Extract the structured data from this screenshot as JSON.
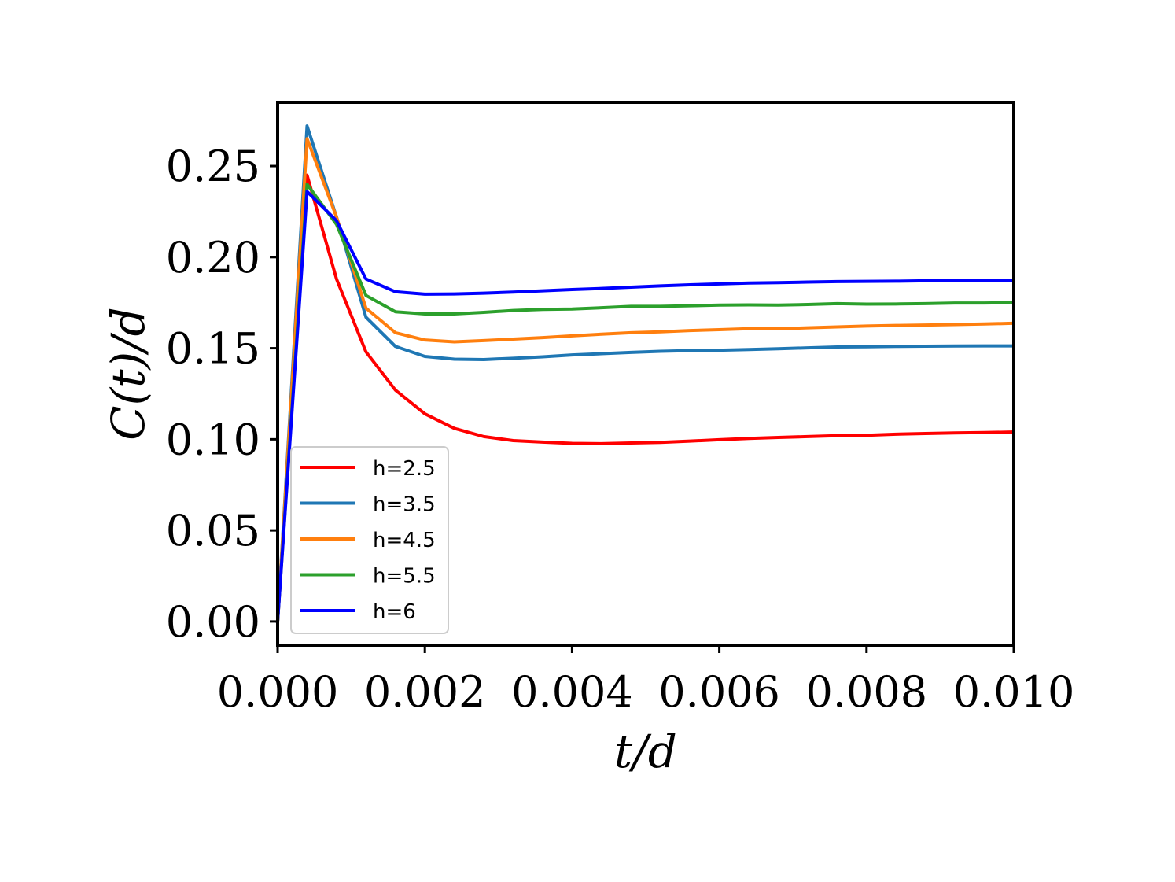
{
  "chart_data": {
    "type": "line",
    "xlabel": "t/d",
    "ylabel": "C(t)/d",
    "xlim": [
      0.0,
      0.01
    ],
    "ylim": [
      -0.013,
      0.285
    ],
    "xticks": [
      0.0,
      0.002,
      0.004,
      0.006,
      0.008,
      0.01
    ],
    "xtick_labels": [
      "0.000",
      "0.002",
      "0.004",
      "0.006",
      "0.008",
      "0.010"
    ],
    "yticks": [
      0.0,
      0.05,
      0.1,
      0.15,
      0.2,
      0.25
    ],
    "ytick_labels": [
      "0.00",
      "0.05",
      "0.10",
      "0.15",
      "0.20",
      "0.25"
    ],
    "grid": false,
    "legend_position": "lower-left",
    "x": [
      0.0,
      0.0004,
      0.0008,
      0.0012,
      0.0016,
      0.002,
      0.0024,
      0.0028,
      0.0032,
      0.0036,
      0.004,
      0.0044,
      0.0048,
      0.0052,
      0.0056,
      0.006,
      0.0064,
      0.0068,
      0.0072,
      0.0076,
      0.008,
      0.0084,
      0.0088,
      0.0092,
      0.0096,
      0.01
    ],
    "series": [
      {
        "name": "h=2.5",
        "color": "#ff0000",
        "values": [
          0.0,
          0.245,
          0.188,
          0.148,
          0.127,
          0.114,
          0.106,
          0.1015,
          0.0993,
          0.0985,
          0.0978,
          0.0976,
          0.098,
          0.0983,
          0.099,
          0.0998,
          0.1005,
          0.101,
          0.1015,
          0.102,
          0.1022,
          0.1028,
          0.1032,
          0.1035,
          0.1037,
          0.104
        ]
      },
      {
        "name": "h=3.5",
        "color": "#1f77b4",
        "values": [
          0.0,
          0.272,
          0.222,
          0.167,
          0.151,
          0.1455,
          0.144,
          0.1438,
          0.1445,
          0.1453,
          0.1463,
          0.147,
          0.1477,
          0.1483,
          0.1487,
          0.1489,
          0.1493,
          0.1497,
          0.1502,
          0.1507,
          0.1508,
          0.151,
          0.1511,
          0.1512,
          0.1513,
          0.1513
        ]
      },
      {
        "name": "h=4.5",
        "color": "#ff7f0e",
        "values": [
          0.0,
          0.265,
          0.222,
          0.172,
          0.1585,
          0.1545,
          0.1535,
          0.1542,
          0.155,
          0.1558,
          0.1568,
          0.1577,
          0.1585,
          0.159,
          0.1597,
          0.1602,
          0.1607,
          0.1607,
          0.1612,
          0.1617,
          0.1622,
          0.1625,
          0.1627,
          0.163,
          0.1633,
          0.1637
        ]
      },
      {
        "name": "h=5.5",
        "color": "#2ca02c",
        "values": [
          0.0,
          0.24,
          0.218,
          0.179,
          0.17,
          0.1688,
          0.1688,
          0.1697,
          0.1707,
          0.1713,
          0.1715,
          0.1722,
          0.173,
          0.173,
          0.1733,
          0.1737,
          0.1738,
          0.1737,
          0.174,
          0.1745,
          0.1742,
          0.1743,
          0.1745,
          0.1748,
          0.1748,
          0.175
        ]
      },
      {
        "name": "h=6",
        "color": "#0000ff",
        "values": [
          0.0,
          0.236,
          0.22,
          0.188,
          0.181,
          0.1797,
          0.1798,
          0.1802,
          0.1808,
          0.1815,
          0.1822,
          0.1828,
          0.1835,
          0.1842,
          0.1848,
          0.1853,
          0.1858,
          0.186,
          0.1863,
          0.1866,
          0.1867,
          0.1868,
          0.187,
          0.1871,
          0.1872,
          0.1873
        ]
      }
    ]
  }
}
